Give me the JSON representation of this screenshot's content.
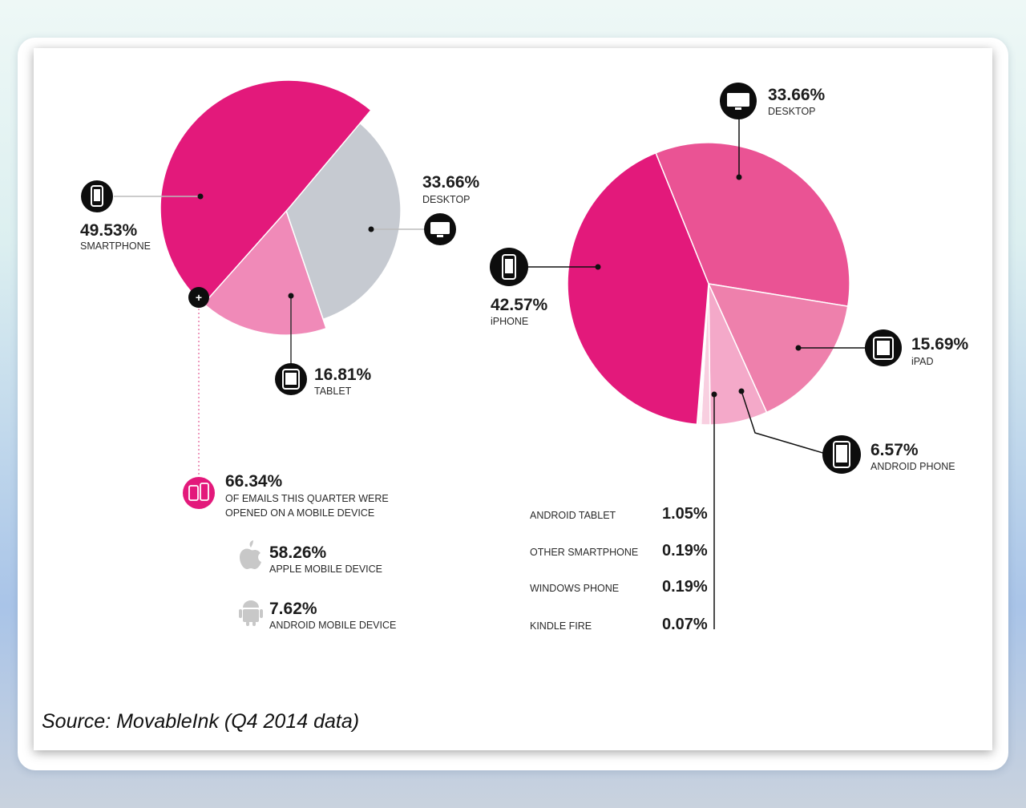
{
  "source": "Source: MovableInk (Q4 2014 data)",
  "colors": {
    "smartphone": "#e3197b",
    "tablet": "#f08ab8",
    "desktop": "#c6cad1",
    "iphone": "#e3197b",
    "desktop_right": "#ea5394",
    "ipad": "#ee80ac",
    "android_phone": "#f4a9c9",
    "android_tablet": "#f8cfe0",
    "icon_bg": "#0d0d0d"
  },
  "chart_data": [
    {
      "type": "pie",
      "slices": [
        {
          "label": "SMARTPHONE",
          "value": 49.53,
          "display": "49.53%",
          "icon": "smartphone-icon"
        },
        {
          "label": "DESKTOP",
          "value": 33.66,
          "display": "33.66%",
          "icon": "desktop-icon"
        },
        {
          "label": "TABLET",
          "value": 16.81,
          "display": "16.81%",
          "icon": "tablet-icon"
        }
      ]
    },
    {
      "type": "pie",
      "slices": [
        {
          "label": "iPHONE",
          "value": 42.57,
          "display": "42.57%",
          "icon": "iphone-icon"
        },
        {
          "label": "DESKTOP",
          "value": 33.66,
          "display": "33.66%",
          "icon": "desktop-icon"
        },
        {
          "label": "iPAD",
          "value": 15.69,
          "display": "15.69%",
          "icon": "ipad-icon"
        },
        {
          "label": "ANDROID PHONE",
          "value": 6.57,
          "display": "6.57%",
          "icon": "android-phone-icon"
        },
        {
          "label": "ANDROID TABLET",
          "value": 1.05,
          "display": "1.05%"
        },
        {
          "label": "OTHER SMARTPHONE",
          "value": 0.19,
          "display": "0.19%"
        },
        {
          "label": "WINDOWS PHONE",
          "value": 0.19,
          "display": "0.19%"
        },
        {
          "label": "KINDLE FIRE",
          "value": 0.07,
          "display": "0.07%"
        }
      ]
    }
  ],
  "mobile_summary": {
    "value": "66.34%",
    "line1": "OF EMAILS THIS QUARTER WERE",
    "line2": "OPENED ON A MOBILE DEVICE",
    "apple_value": "58.26%",
    "apple_label": "APPLE MOBILE DEVICE",
    "android_value": "7.62%",
    "android_label": "ANDROID MOBILE DEVICE"
  }
}
